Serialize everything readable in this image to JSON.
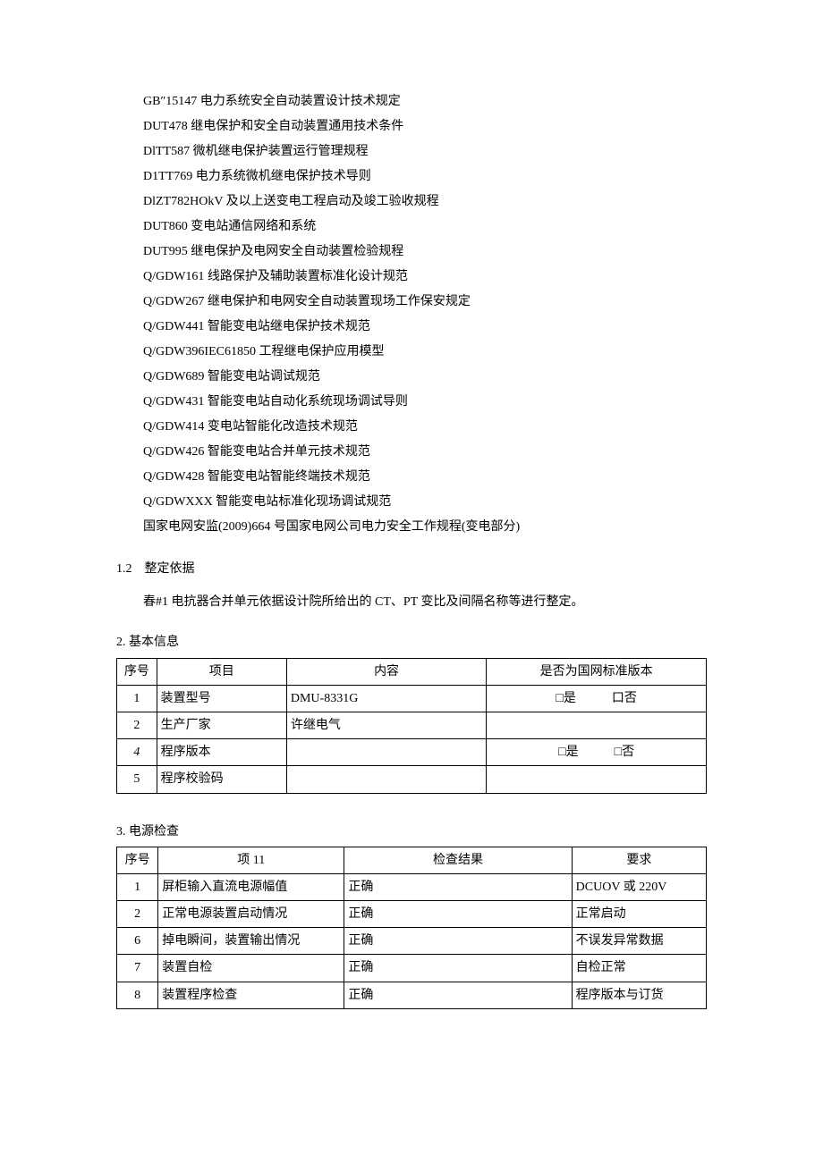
{
  "standards": [
    "GB″15147 电力系统安全自动装置设计技术规定",
    "DUT478 继电保护和安全自动装置通用技术条件",
    "DlTT587 微机继电保护装置运行管理规程",
    "D1TT769 电力系统微机继电保护技术导则",
    "DlZT782HOkV 及以上送变电工程启动及竣工验收规程",
    "DUT860 变电站通信网络和系统",
    "DUT995 继电保护及电网安全自动装置检验规程",
    "Q/GDW161 线路保护及辅助装置标准化设计规范",
    "Q/GDW267 继电保护和电网安全自动装置现场工作保安规定",
    "Q/GDW441 智能变电站继电保护技术规范",
    "Q/GDW396IEC61850 工程继电保护应用模型",
    "Q/GDW689 智能变电站调试规范",
    "Q/GDW431 智能变电站自动化系统现场调试导则",
    "Q/GDW414 变电站智能化改造技术规范",
    "Q/GDW426 智能变电站合并单元技术规范",
    "Q/GDW428 智能变电站智能终端技术规范",
    "Q/GDWXXX 智能变电站标准化现场调试规范",
    "国家电网安监(2009)664 号国家电网公司电力安全工作规程(变电部分)"
  ],
  "section_1_2": {
    "heading": "1.2　整定依据",
    "body": "春#1 电抗器合并单元依据设计院所给出的 CT、PT 变比及间隔名称等进行整定。"
  },
  "table1": {
    "heading": "2. 基本信息",
    "headers": [
      "序号",
      "项目",
      "内容",
      "是否为国网标准版本"
    ],
    "cb_yes": "□是",
    "cb_no": "口否",
    "cb_no2": "□否",
    "rows": [
      {
        "seq": "1",
        "item": "装置型号",
        "content": "DMU-8331G",
        "checkbox": true
      },
      {
        "seq": "2",
        "item": "生产厂家",
        "content": "许继电气",
        "checkbox": false
      },
      {
        "seq": "4",
        "item": "程序版本",
        "content": "",
        "checkbox": true,
        "italic": true,
        "alt_no": true
      },
      {
        "seq": "5",
        "item": "程序校验码",
        "content": "",
        "checkbox": false
      }
    ]
  },
  "table2": {
    "heading": "3. 电源检查",
    "headers": [
      "序号",
      "项 11",
      "检查结果",
      "要求"
    ],
    "rows": [
      {
        "seq": "1",
        "item": "屏柜输入直流电源幅值",
        "result": "正确",
        "req": "DCUOV 或 220V"
      },
      {
        "seq": "2",
        "item": "正常电源装置启动情况",
        "result": "正确",
        "req": "正常启动"
      },
      {
        "seq": "6",
        "item": "掉电瞬间，装置输出情况",
        "result": "正确",
        "req": "不误发异常数据"
      },
      {
        "seq": "7",
        "item": "装置自检",
        "result": "正确",
        "req": "自检正常"
      },
      {
        "seq": "8",
        "item": "装置程序检查",
        "result": "正确",
        "req": "程序版本与订货"
      }
    ]
  }
}
